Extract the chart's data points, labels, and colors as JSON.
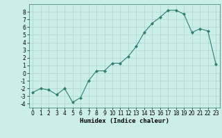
{
  "x": [
    0,
    1,
    2,
    3,
    4,
    5,
    6,
    7,
    8,
    9,
    10,
    11,
    12,
    13,
    14,
    15,
    16,
    17,
    18,
    19,
    20,
    21,
    22,
    23
  ],
  "y": [
    -2.5,
    -2.0,
    -2.2,
    -2.8,
    -2.0,
    -3.8,
    -3.2,
    -1.0,
    0.3,
    0.3,
    1.3,
    1.3,
    2.2,
    3.5,
    5.3,
    6.5,
    7.3,
    8.2,
    8.2,
    7.7,
    5.3,
    5.8,
    5.5,
    1.2
  ],
  "xlabel": "Humidex (Indice chaleur)",
  "line_color": "#2d7d6e",
  "marker": "D",
  "marker_size": 2.0,
  "bg_color": "#cceee8",
  "grid_color": "#aad4cc",
  "ylim": [
    -4.5,
    9.0
  ],
  "xlim": [
    -0.5,
    23.5
  ],
  "yticks": [
    -4,
    -3,
    -2,
    -1,
    0,
    1,
    2,
    3,
    4,
    5,
    6,
    7,
    8
  ],
  "xticks": [
    0,
    1,
    2,
    3,
    4,
    5,
    6,
    7,
    8,
    9,
    10,
    11,
    12,
    13,
    14,
    15,
    16,
    17,
    18,
    19,
    20,
    21,
    22,
    23
  ],
  "tick_fontsize": 5.5,
  "label_fontsize": 6.5
}
